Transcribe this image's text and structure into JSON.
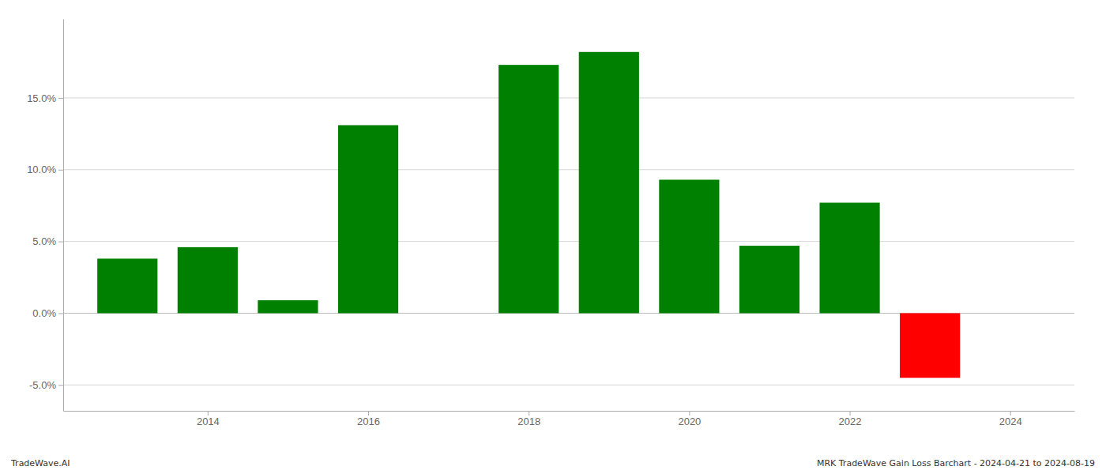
{
  "chart_data": {
    "type": "bar",
    "x": [
      2013,
      2014,
      2015,
      2016,
      2018,
      2019,
      2020,
      2021,
      2022,
      2023
    ],
    "values": [
      0.038,
      0.046,
      0.009,
      0.131,
      0.173,
      0.182,
      0.093,
      0.047,
      0.077,
      -0.045
    ],
    "colors": [
      "#008000",
      "#008000",
      "#008000",
      "#008000",
      "#008000",
      "#008000",
      "#008000",
      "#008000",
      "#008000",
      "#ff0000"
    ],
    "xlim": [
      2012.2,
      2024.8
    ],
    "xticks": [
      2014,
      2016,
      2018,
      2020,
      2022,
      2024
    ],
    "ylim": [
      -0.068,
      0.205
    ],
    "yticks": [
      {
        "value": -0.05,
        "label": "-5.0%"
      },
      {
        "value": 0.0,
        "label": "0.0%"
      },
      {
        "value": 0.05,
        "label": "5.0%"
      },
      {
        "value": 0.1,
        "label": "10.0%"
      },
      {
        "value": 0.15,
        "label": "15.0%"
      }
    ],
    "grid": "y",
    "annotations": [
      "TradeWave.AI",
      "MRK TradeWave Gain Loss Barchart - 2024-04-21 to 2024-08-19"
    ]
  }
}
